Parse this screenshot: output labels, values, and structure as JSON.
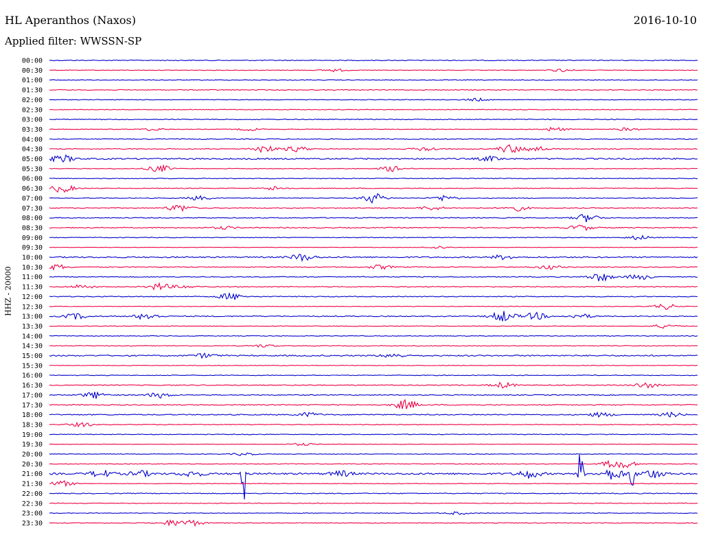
{
  "header": {
    "station": "HL Aperanthos (Naxos)",
    "date": "2016-10-10",
    "filter": "Applied filter: WWSSN-SP"
  },
  "chart_data": {
    "type": "line",
    "title": "HL Aperanthos (Naxos)",
    "ylabel": "HHZ - 20000",
    "xlabel": "",
    "colors": [
      "#0000cc",
      "#ee0044"
    ],
    "rows": [
      {
        "label": "00:00",
        "noise": 0.6,
        "events": []
      },
      {
        "label": "00:30",
        "noise": 0.4,
        "events": [
          {
            "x": 0.44,
            "a": 2
          },
          {
            "x": 0.79,
            "a": 2
          }
        ]
      },
      {
        "label": "01:00",
        "noise": 0.5,
        "events": []
      },
      {
        "label": "01:30",
        "noise": 0.6,
        "events": []
      },
      {
        "label": "02:00",
        "noise": 0.4,
        "events": [
          {
            "x": 0.66,
            "a": 2
          }
        ]
      },
      {
        "label": "02:30",
        "noise": 0.5,
        "events": []
      },
      {
        "label": "03:00",
        "noise": 0.6,
        "events": []
      },
      {
        "label": "03:30",
        "noise": 0.4,
        "events": [
          {
            "x": 0.16,
            "a": 2
          },
          {
            "x": 0.31,
            "a": 2
          },
          {
            "x": 0.78,
            "a": 3
          },
          {
            "x": 0.89,
            "a": 2
          }
        ]
      },
      {
        "label": "04:00",
        "noise": 0.6,
        "events": []
      },
      {
        "label": "04:30",
        "noise": 0.6,
        "events": [
          {
            "x": 0.33,
            "a": 5
          },
          {
            "x": 0.38,
            "a": 4
          },
          {
            "x": 0.58,
            "a": 3
          },
          {
            "x": 0.71,
            "a": 6
          },
          {
            "x": 0.75,
            "a": 4
          }
        ]
      },
      {
        "label": "05:00",
        "noise": 1.0,
        "events": [
          {
            "x": 0.02,
            "a": 5
          },
          {
            "x": 0.68,
            "a": 3
          }
        ]
      },
      {
        "label": "05:30",
        "noise": 0.5,
        "events": [
          {
            "x": 0.17,
            "a": 5
          },
          {
            "x": 0.53,
            "a": 4
          }
        ]
      },
      {
        "label": "06:00",
        "noise": 0.5,
        "events": []
      },
      {
        "label": "06:30",
        "noise": 0.5,
        "events": [
          {
            "x": 0.02,
            "a": 6
          },
          {
            "x": 0.35,
            "a": 3
          }
        ]
      },
      {
        "label": "07:00",
        "noise": 0.5,
        "events": [
          {
            "x": 0.23,
            "a": 3
          },
          {
            "x": 0.5,
            "a": 7
          },
          {
            "x": 0.61,
            "a": 4
          }
        ]
      },
      {
        "label": "07:30",
        "noise": 0.6,
        "events": [
          {
            "x": 0.2,
            "a": 5
          },
          {
            "x": 0.59,
            "a": 3
          },
          {
            "x": 0.72,
            "a": 4
          }
        ]
      },
      {
        "label": "08:00",
        "noise": 0.6,
        "events": [
          {
            "x": 0.83,
            "a": 6
          }
        ]
      },
      {
        "label": "08:30",
        "noise": 0.7,
        "events": [
          {
            "x": 0.27,
            "a": 2
          },
          {
            "x": 0.82,
            "a": 4
          }
        ]
      },
      {
        "label": "09:00",
        "noise": 0.5,
        "events": [
          {
            "x": 0.91,
            "a": 3
          }
        ]
      },
      {
        "label": "09:30",
        "noise": 0.3,
        "events": [
          {
            "x": 0.6,
            "a": 2
          }
        ]
      },
      {
        "label": "10:00",
        "noise": 0.9,
        "events": [
          {
            "x": 0.39,
            "a": 5
          },
          {
            "x": 0.7,
            "a": 3
          }
        ]
      },
      {
        "label": "10:30",
        "noise": 0.6,
        "events": [
          {
            "x": 0.01,
            "a": 4
          },
          {
            "x": 0.51,
            "a": 3
          },
          {
            "x": 0.77,
            "a": 3
          }
        ]
      },
      {
        "label": "11:00",
        "noise": 0.6,
        "events": [
          {
            "x": 0.85,
            "a": 6
          },
          {
            "x": 0.91,
            "a": 4
          }
        ]
      },
      {
        "label": "11:30",
        "noise": 0.6,
        "events": [
          {
            "x": 0.05,
            "a": 3
          },
          {
            "x": 0.17,
            "a": 5
          },
          {
            "x": 0.21,
            "a": 2
          }
        ]
      },
      {
        "label": "12:00",
        "noise": 0.6,
        "events": [
          {
            "x": 0.28,
            "a": 5
          }
        ]
      },
      {
        "label": "12:30",
        "noise": 0.4,
        "events": [
          {
            "x": 0.95,
            "a": 4
          }
        ]
      },
      {
        "label": "13:00",
        "noise": 0.7,
        "events": [
          {
            "x": 0.04,
            "a": 4
          },
          {
            "x": 0.15,
            "a": 5
          },
          {
            "x": 0.7,
            "a": 8
          },
          {
            "x": 0.75,
            "a": 5
          },
          {
            "x": 0.82,
            "a": 3
          }
        ]
      },
      {
        "label": "13:30",
        "noise": 0.4,
        "events": [
          {
            "x": 0.95,
            "a": 3
          }
        ]
      },
      {
        "label": "14:00",
        "noise": 0.5,
        "events": []
      },
      {
        "label": "14:30",
        "noise": 0.5,
        "events": [
          {
            "x": 0.33,
            "a": 2
          }
        ]
      },
      {
        "label": "15:00",
        "noise": 0.9,
        "events": [
          {
            "x": 0.24,
            "a": 3
          },
          {
            "x": 0.53,
            "a": 3
          }
        ]
      },
      {
        "label": "15:30",
        "noise": 0.4,
        "events": []
      },
      {
        "label": "16:00",
        "noise": 0.5,
        "events": []
      },
      {
        "label": "16:30",
        "noise": 0.6,
        "events": [
          {
            "x": 0.7,
            "a": 4
          },
          {
            "x": 0.92,
            "a": 4
          }
        ]
      },
      {
        "label": "17:00",
        "noise": 0.6,
        "events": [
          {
            "x": 0.07,
            "a": 5
          },
          {
            "x": 0.17,
            "a": 4
          }
        ]
      },
      {
        "label": "17:30",
        "noise": 0.7,
        "events": [
          {
            "x": 0.55,
            "a": 7
          }
        ]
      },
      {
        "label": "18:00",
        "noise": 0.7,
        "events": [
          {
            "x": 0.4,
            "a": 3
          },
          {
            "x": 0.85,
            "a": 3
          },
          {
            "x": 0.96,
            "a": 3
          }
        ]
      },
      {
        "label": "18:30",
        "noise": 0.5,
        "events": [
          {
            "x": 0.05,
            "a": 3
          }
        ]
      },
      {
        "label": "19:00",
        "noise": 0.5,
        "events": []
      },
      {
        "label": "19:30",
        "noise": 0.3,
        "events": [
          {
            "x": 0.39,
            "a": 2
          }
        ]
      },
      {
        "label": "20:00",
        "noise": 0.4,
        "events": [
          {
            "x": 0.3,
            "a": 2
          }
        ]
      },
      {
        "label": "20:30",
        "noise": 0.5,
        "events": [
          {
            "x": 0.87,
            "a": 5
          },
          {
            "x": 0.89,
            "a": 4
          }
        ]
      },
      {
        "label": "21:00",
        "noise": 1.2,
        "events": [
          {
            "x": 0.08,
            "a": 5
          },
          {
            "x": 0.14,
            "a": 4
          },
          {
            "x": 0.22,
            "a": 4
          },
          {
            "x": 0.3,
            "a": 45
          },
          {
            "x": 0.45,
            "a": 4
          },
          {
            "x": 0.74,
            "a": 6
          },
          {
            "x": 0.82,
            "a": 40
          },
          {
            "x": 0.87,
            "a": 8
          },
          {
            "x": 0.9,
            "a": 30
          },
          {
            "x": 0.93,
            "a": 6
          }
        ]
      },
      {
        "label": "21:30",
        "noise": 0.4,
        "events": [
          {
            "x": 0.02,
            "a": 4
          }
        ]
      },
      {
        "label": "22:00",
        "noise": 0.6,
        "events": []
      },
      {
        "label": "22:30",
        "noise": 0.5,
        "events": []
      },
      {
        "label": "23:00",
        "noise": 0.4,
        "events": [
          {
            "x": 0.63,
            "a": 2
          }
        ]
      },
      {
        "label": "23:30",
        "noise": 0.5,
        "events": [
          {
            "x": 0.19,
            "a": 4
          },
          {
            "x": 0.22,
            "a": 4
          }
        ]
      }
    ]
  }
}
